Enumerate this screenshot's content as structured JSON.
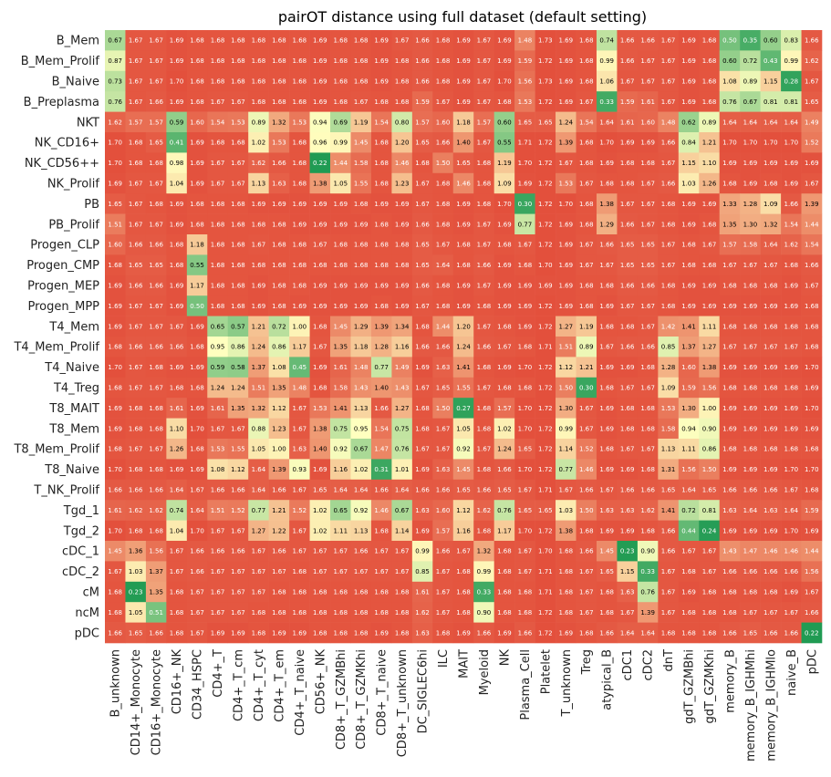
{
  "chart_data": {
    "type": "heatmap",
    "title": "pairOT distance using full dataset (default setting)",
    "xlabel": "",
    "ylabel": "",
    "colorscale": {
      "low": "#1a9850",
      "mid": "#ffffbf",
      "high": "#e3503c"
    },
    "value_range": [
      0.2,
      1.7
    ],
    "rows": [
      "B_Mem",
      "B_Mem_Prolif",
      "B_Naive",
      "B_Preplasma",
      "NKT",
      "NK_CD16+",
      "NK_CD56++",
      "NK_Prolif",
      "PB",
      "PB_Prolif",
      "Progen_CLP",
      "Progen_CMP",
      "Progen_MEP",
      "Progen_MPP",
      "T4_Mem",
      "T4_Mem_Prolif",
      "T4_Naive",
      "T4_Treg",
      "T8_MAIT",
      "T8_Mem",
      "T8_Mem_Prolif",
      "T8_Naive",
      "T_NK_Prolif",
      "Tgd_1",
      "Tgd_2",
      "cDC_1",
      "cDC_2",
      "cM",
      "ncM",
      "pDC"
    ],
    "columns": [
      "B_unknown",
      "CD14+_Monocyte",
      "CD16+_Monocyte",
      "CD16+_NK",
      "CD34_HSPC",
      "CD4+_T",
      "CD4+_T_cm",
      "CD4+_T_cyt",
      "CD4+_T_em",
      "CD4+_T_naive",
      "CD56+_NK",
      "CD8+_T_GZMBhi",
      "CD8+_T_GZMKhi",
      "CD8+_T_naive",
      "CD8+_T_unknown",
      "DC_SIGLEC6hi",
      "ILC",
      "MAIT",
      "Myeloid",
      "NK",
      "Plasma_Cell",
      "Platelet",
      "T_unknown",
      "Treg",
      "atypical_B",
      "cDC1",
      "cDC2",
      "dnT",
      "gdT_GZMBhi",
      "gdT_GZMKhi",
      "memory_B",
      "memory_B_IGHMhi",
      "memory_B_IGHMlo",
      "naive_B",
      "pDC"
    ],
    "values": [
      [
        0.67,
        1.67,
        1.67,
        1.69,
        1.68,
        1.68,
        1.68,
        1.68,
        1.68,
        1.68,
        1.69,
        1.68,
        1.68,
        1.69,
        1.67,
        1.66,
        1.68,
        1.69,
        1.67,
        1.69,
        1.48,
        1.73,
        1.69,
        1.68,
        0.74,
        1.66,
        1.66,
        1.67,
        1.69,
        1.68,
        0.5,
        0.35,
        0.6,
        0.83,
        1.66
      ],
      [
        0.87,
        1.67,
        1.67,
        1.69,
        1.68,
        1.68,
        1.68,
        1.68,
        1.68,
        1.68,
        1.69,
        1.68,
        1.68,
        1.69,
        1.68,
        1.66,
        1.68,
        1.69,
        1.67,
        1.69,
        1.59,
        1.72,
        1.69,
        1.68,
        0.99,
        1.66,
        1.67,
        1.67,
        1.69,
        1.68,
        0.6,
        0.72,
        0.43,
        0.99,
        1.62
      ],
      [
        0.73,
        1.67,
        1.67,
        1.7,
        1.68,
        1.68,
        1.68,
        1.68,
        1.68,
        1.68,
        1.69,
        1.68,
        1.68,
        1.69,
        1.68,
        1.66,
        1.68,
        1.69,
        1.67,
        1.7,
        1.56,
        1.73,
        1.69,
        1.68,
        1.06,
        1.67,
        1.67,
        1.67,
        1.69,
        1.68,
        1.08,
        0.89,
        1.15,
        0.28,
        1.67
      ],
      [
        0.76,
        1.67,
        1.66,
        1.69,
        1.68,
        1.67,
        1.67,
        1.68,
        1.68,
        1.68,
        1.69,
        1.68,
        1.67,
        1.68,
        1.68,
        1.59,
        1.67,
        1.69,
        1.67,
        1.68,
        1.53,
        1.72,
        1.69,
        1.67,
        0.33,
        1.59,
        1.61,
        1.67,
        1.69,
        1.68,
        0.76,
        0.67,
        0.81,
        0.81,
        1.65
      ],
      [
        1.62,
        1.57,
        1.57,
        0.59,
        1.6,
        1.54,
        1.53,
        0.89,
        1.32,
        1.53,
        0.94,
        0.69,
        1.19,
        1.54,
        0.8,
        1.57,
        1.6,
        1.18,
        1.57,
        0.6,
        1.65,
        1.65,
        1.24,
        1.54,
        1.64,
        1.61,
        1.6,
        1.48,
        0.62,
        0.89,
        1.64,
        1.64,
        1.64,
        1.64,
        1.49
      ],
      [
        1.7,
        1.68,
        1.65,
        0.41,
        1.69,
        1.68,
        1.68,
        1.02,
        1.53,
        1.68,
        0.96,
        0.99,
        1.45,
        1.68,
        1.2,
        1.65,
        1.66,
        1.4,
        1.67,
        0.55,
        1.71,
        1.72,
        1.39,
        1.68,
        1.7,
        1.69,
        1.69,
        1.66,
        0.84,
        1.21,
        1.7,
        1.7,
        1.7,
        1.7,
        1.52
      ],
      [
        1.7,
        1.68,
        1.68,
        0.98,
        1.69,
        1.67,
        1.67,
        1.62,
        1.66,
        1.68,
        0.22,
        1.44,
        1.58,
        1.68,
        1.46,
        1.68,
        1.5,
        1.65,
        1.68,
        1.19,
        1.7,
        1.72,
        1.67,
        1.68,
        1.69,
        1.68,
        1.68,
        1.67,
        1.15,
        1.1,
        1.69,
        1.69,
        1.69,
        1.69,
        1.69
      ],
      [
        1.69,
        1.67,
        1.67,
        1.04,
        1.69,
        1.67,
        1.67,
        1.13,
        1.63,
        1.68,
        1.38,
        1.05,
        1.55,
        1.68,
        1.23,
        1.67,
        1.68,
        1.46,
        1.68,
        1.09,
        1.69,
        1.72,
        1.53,
        1.67,
        1.68,
        1.68,
        1.67,
        1.66,
        1.03,
        1.26,
        1.68,
        1.69,
        1.68,
        1.69,
        1.67
      ],
      [
        1.65,
        1.67,
        1.68,
        1.69,
        1.68,
        1.68,
        1.68,
        1.69,
        1.69,
        1.69,
        1.69,
        1.69,
        1.68,
        1.69,
        1.69,
        1.67,
        1.68,
        1.69,
        1.68,
        1.7,
        0.3,
        1.72,
        1.7,
        1.68,
        1.38,
        1.67,
        1.67,
        1.68,
        1.69,
        1.69,
        1.33,
        1.28,
        1.09,
        1.66,
        1.39
      ],
      [
        1.51,
        1.67,
        1.67,
        1.69,
        1.68,
        1.68,
        1.68,
        1.68,
        1.68,
        1.69,
        1.69,
        1.69,
        1.69,
        1.68,
        1.69,
        1.66,
        1.68,
        1.69,
        1.67,
        1.69,
        0.77,
        1.72,
        1.69,
        1.68,
        1.29,
        1.66,
        1.67,
        1.68,
        1.69,
        1.68,
        1.35,
        1.3,
        1.32,
        1.54,
        1.44
      ],
      [
        1.6,
        1.66,
        1.66,
        1.68,
        1.18,
        1.68,
        1.68,
        1.67,
        1.68,
        1.68,
        1.67,
        1.68,
        1.68,
        1.68,
        1.68,
        1.65,
        1.67,
        1.68,
        1.67,
        1.68,
        1.67,
        1.72,
        1.69,
        1.67,
        1.66,
        1.65,
        1.65,
        1.67,
        1.68,
        1.67,
        1.57,
        1.58,
        1.64,
        1.62,
        1.54
      ],
      [
        1.68,
        1.65,
        1.65,
        1.68,
        0.55,
        1.68,
        1.68,
        1.68,
        1.68,
        1.68,
        1.68,
        1.68,
        1.68,
        1.68,
        1.68,
        1.65,
        1.64,
        1.68,
        1.66,
        1.69,
        1.68,
        1.7,
        1.69,
        1.67,
        1.67,
        1.65,
        1.65,
        1.67,
        1.68,
        1.68,
        1.67,
        1.67,
        1.67,
        1.68,
        1.66
      ],
      [
        1.69,
        1.66,
        1.66,
        1.69,
        1.17,
        1.68,
        1.68,
        1.69,
        1.68,
        1.68,
        1.69,
        1.69,
        1.69,
        1.69,
        1.69,
        1.66,
        1.68,
        1.69,
        1.67,
        1.69,
        1.69,
        1.69,
        1.69,
        1.68,
        1.68,
        1.66,
        1.66,
        1.68,
        1.69,
        1.69,
        1.68,
        1.68,
        1.68,
        1.69,
        1.67
      ],
      [
        1.69,
        1.67,
        1.67,
        1.69,
        0.5,
        1.68,
        1.68,
        1.69,
        1.68,
        1.69,
        1.69,
        1.69,
        1.69,
        1.68,
        1.69,
        1.67,
        1.68,
        1.69,
        1.68,
        1.69,
        1.69,
        1.72,
        1.69,
        1.68,
        1.69,
        1.67,
        1.67,
        1.68,
        1.69,
        1.69,
        1.69,
        1.69,
        1.69,
        1.69,
        1.68
      ],
      [
        1.69,
        1.67,
        1.67,
        1.67,
        1.69,
        0.65,
        0.57,
        1.21,
        0.72,
        1.0,
        1.68,
        1.45,
        1.29,
        1.39,
        1.34,
        1.68,
        1.44,
        1.2,
        1.67,
        1.68,
        1.69,
        1.72,
        1.27,
        1.19,
        1.68,
        1.68,
        1.67,
        1.42,
        1.41,
        1.11,
        1.68,
        1.68,
        1.68,
        1.68,
        1.68
      ],
      [
        1.68,
        1.66,
        1.66,
        1.66,
        1.68,
        0.95,
        0.86,
        1.24,
        0.86,
        1.17,
        1.67,
        1.35,
        1.18,
        1.28,
        1.16,
        1.66,
        1.66,
        1.24,
        1.66,
        1.67,
        1.68,
        1.71,
        1.51,
        0.89,
        1.67,
        1.66,
        1.66,
        0.85,
        1.37,
        1.27,
        1.67,
        1.67,
        1.67,
        1.67,
        1.68
      ],
      [
        1.7,
        1.67,
        1.68,
        1.69,
        1.69,
        0.59,
        0.58,
        1.37,
        1.08,
        0.45,
        1.69,
        1.61,
        1.48,
        0.77,
        1.49,
        1.69,
        1.63,
        1.41,
        1.68,
        1.69,
        1.7,
        1.72,
        1.12,
        1.21,
        1.69,
        1.69,
        1.68,
        1.28,
        1.6,
        1.38,
        1.69,
        1.69,
        1.69,
        1.69,
        1.7
      ],
      [
        1.68,
        1.67,
        1.67,
        1.68,
        1.68,
        1.24,
        1.24,
        1.51,
        1.35,
        1.48,
        1.68,
        1.58,
        1.43,
        1.4,
        1.43,
        1.67,
        1.65,
        1.55,
        1.67,
        1.68,
        1.68,
        1.72,
        1.5,
        0.3,
        1.68,
        1.67,
        1.67,
        1.09,
        1.59,
        1.56,
        1.68,
        1.68,
        1.68,
        1.68,
        1.69
      ],
      [
        1.69,
        1.68,
        1.68,
        1.61,
        1.69,
        1.61,
        1.35,
        1.32,
        1.12,
        1.67,
        1.53,
        1.41,
        1.13,
        1.66,
        1.27,
        1.68,
        1.5,
        0.27,
        1.68,
        1.57,
        1.7,
        1.72,
        1.3,
        1.67,
        1.69,
        1.68,
        1.68,
        1.53,
        1.3,
        1.0,
        1.69,
        1.69,
        1.69,
        1.69,
        1.7
      ],
      [
        1.69,
        1.68,
        1.68,
        1.1,
        1.7,
        1.67,
        1.67,
        0.88,
        1.23,
        1.67,
        1.38,
        0.75,
        0.95,
        1.54,
        0.75,
        1.68,
        1.67,
        1.05,
        1.68,
        1.02,
        1.7,
        1.72,
        0.99,
        1.67,
        1.69,
        1.68,
        1.68,
        1.58,
        0.94,
        0.9,
        1.69,
        1.69,
        1.69,
        1.69,
        1.69
      ],
      [
        1.68,
        1.67,
        1.67,
        1.26,
        1.68,
        1.53,
        1.55,
        1.05,
        1.0,
        1.63,
        1.4,
        0.92,
        0.67,
        1.47,
        0.76,
        1.67,
        1.67,
        0.92,
        1.67,
        1.24,
        1.65,
        1.72,
        1.14,
        1.52,
        1.68,
        1.67,
        1.67,
        1.13,
        1.11,
        0.86,
        1.68,
        1.68,
        1.68,
        1.68,
        1.68
      ],
      [
        1.7,
        1.68,
        1.68,
        1.69,
        1.69,
        1.08,
        1.12,
        1.64,
        1.39,
        0.93,
        1.69,
        1.16,
        1.02,
        0.31,
        1.01,
        1.69,
        1.63,
        1.45,
        1.68,
        1.66,
        1.7,
        1.72,
        0.77,
        1.46,
        1.69,
        1.69,
        1.68,
        1.31,
        1.56,
        1.5,
        1.69,
        1.69,
        1.69,
        1.7,
        1.7
      ],
      [
        1.66,
        1.66,
        1.66,
        1.64,
        1.67,
        1.66,
        1.66,
        1.64,
        1.66,
        1.67,
        1.65,
        1.64,
        1.64,
        1.66,
        1.64,
        1.66,
        1.66,
        1.65,
        1.66,
        1.65,
        1.67,
        1.71,
        1.67,
        1.66,
        1.67,
        1.66,
        1.66,
        1.65,
        1.64,
        1.65,
        1.66,
        1.66,
        1.66,
        1.67,
        1.68
      ],
      [
        1.61,
        1.62,
        1.62,
        0.74,
        1.64,
        1.51,
        1.52,
        0.77,
        1.21,
        1.52,
        1.02,
        0.65,
        0.92,
        1.46,
        0.67,
        1.63,
        1.6,
        1.12,
        1.62,
        0.76,
        1.65,
        1.65,
        1.03,
        1.5,
        1.63,
        1.63,
        1.62,
        1.41,
        0.72,
        0.81,
        1.63,
        1.64,
        1.63,
        1.64,
        1.59
      ],
      [
        1.7,
        1.68,
        1.68,
        1.04,
        1.7,
        1.67,
        1.67,
        1.27,
        1.22,
        1.67,
        1.02,
        1.11,
        1.13,
        1.68,
        1.14,
        1.69,
        1.57,
        1.16,
        1.68,
        1.17,
        1.7,
        1.72,
        1.38,
        1.68,
        1.69,
        1.69,
        1.68,
        1.66,
        0.44,
        0.24,
        1.69,
        1.69,
        1.69,
        1.7,
        1.69
      ],
      [
        1.45,
        1.36,
        1.56,
        1.67,
        1.66,
        1.66,
        1.66,
        1.67,
        1.66,
        1.67,
        1.67,
        1.67,
        1.66,
        1.67,
        1.67,
        0.99,
        1.66,
        1.67,
        1.32,
        1.68,
        1.67,
        1.7,
        1.68,
        1.66,
        1.45,
        0.23,
        0.9,
        1.66,
        1.67,
        1.67,
        1.43,
        1.47,
        1.46,
        1.46,
        1.44
      ],
      [
        1.67,
        1.03,
        1.37,
        1.67,
        1.66,
        1.67,
        1.67,
        1.67,
        1.67,
        1.68,
        1.67,
        1.67,
        1.67,
        1.67,
        1.67,
        0.85,
        1.67,
        1.68,
        0.99,
        1.68,
        1.67,
        1.71,
        1.68,
        1.67,
        1.65,
        1.15,
        0.33,
        1.67,
        1.68,
        1.67,
        1.66,
        1.66,
        1.66,
        1.66,
        1.56
      ],
      [
        1.68,
        0.23,
        1.35,
        1.68,
        1.67,
        1.67,
        1.67,
        1.67,
        1.68,
        1.68,
        1.68,
        1.68,
        1.68,
        1.68,
        1.68,
        1.61,
        1.67,
        1.68,
        0.33,
        1.68,
        1.68,
        1.71,
        1.68,
        1.67,
        1.68,
        1.63,
        0.76,
        1.67,
        1.69,
        1.68,
        1.68,
        1.68,
        1.68,
        1.69,
        1.67
      ],
      [
        1.68,
        1.05,
        0.51,
        1.68,
        1.67,
        1.67,
        1.67,
        1.68,
        1.68,
        1.68,
        1.68,
        1.68,
        1.68,
        1.68,
        1.68,
        1.62,
        1.67,
        1.68,
        0.9,
        1.68,
        1.68,
        1.72,
        1.68,
        1.67,
        1.68,
        1.67,
        1.39,
        1.67,
        1.68,
        1.68,
        1.68,
        1.67,
        1.67,
        1.67,
        1.66
      ],
      [
        1.66,
        1.65,
        1.66,
        1.68,
        1.67,
        1.69,
        1.69,
        1.68,
        1.69,
        1.69,
        1.68,
        1.68,
        1.68,
        1.69,
        1.68,
        1.63,
        1.68,
        1.69,
        1.66,
        1.69,
        1.66,
        1.72,
        1.69,
        1.68,
        1.66,
        1.64,
        1.64,
        1.68,
        1.68,
        1.68,
        1.66,
        1.65,
        1.66,
        1.66,
        0.22
      ]
    ]
  }
}
